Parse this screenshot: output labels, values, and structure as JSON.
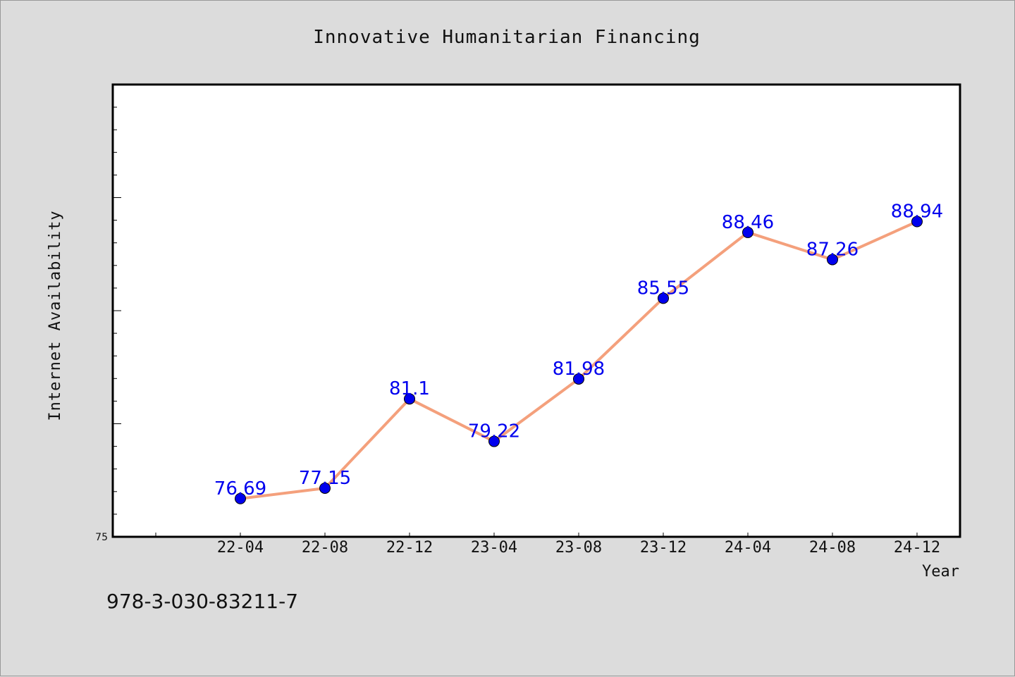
{
  "chart_data": {
    "type": "line",
    "title": "Innovative Humanitarian Financing",
    "xlabel": "Year",
    "ylabel": "Internet Availability",
    "categories": [
      "22-04",
      "22-08",
      "22-12",
      "23-04",
      "23-08",
      "23-12",
      "24-04",
      "24-08",
      "24-12"
    ],
    "series": [
      {
        "values": [
          76.69,
          77.15,
          81.1,
          79.22,
          81.98,
          85.55,
          88.46,
          87.26,
          88.94
        ],
        "data_labels": [
          "76.69",
          "77.15",
          "81.1",
          "79.22",
          "81.98",
          "85.55",
          "88.46",
          "87.26",
          "88.94"
        ],
        "line_color": "#f4a07c",
        "marker_color": "#0000ee"
      }
    ],
    "y_tick_labels": [
      "75"
    ],
    "ylim": [
      75,
      95
    ],
    "grid": false,
    "legend": "none"
  },
  "footer_text": "978-3-030-83211-7",
  "colors": {
    "background": "#dcdcdc",
    "plot_background": "#ffffff",
    "label_color": "#0000ee"
  }
}
